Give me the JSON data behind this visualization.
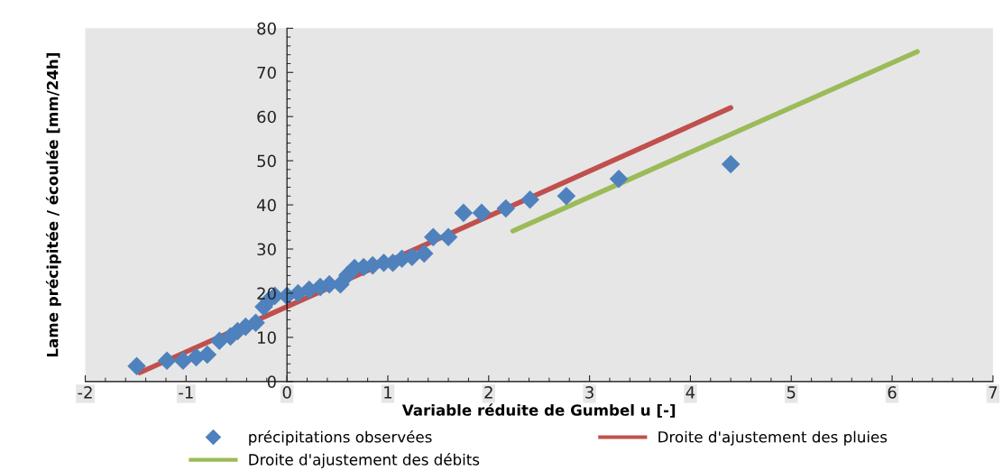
{
  "chart_data": {
    "type": "scatter",
    "xlabel": "Variable réduite de Gumbel u [-]",
    "ylabel": "Lame précipitée / écoulée [mm/24h]",
    "xlim": [
      -2,
      7
    ],
    "xticks": [
      -2,
      -1,
      0,
      1,
      2,
      3,
      4,
      5,
      6,
      7
    ],
    "ylim": [
      0,
      80
    ],
    "yticks": [
      0,
      10,
      20,
      30,
      40,
      50,
      60,
      70,
      80
    ],
    "grid": false,
    "legend": "bottom",
    "series": [
      {
        "name": "précipitations observées",
        "marker": "diamond",
        "color": "#4f81bd",
        "x": [
          -1.49,
          -1.19,
          -1.03,
          -0.9,
          -0.79,
          -0.67,
          -0.56,
          -0.49,
          -0.41,
          -0.31,
          -0.23,
          -0.18,
          -0.12,
          0,
          0.11,
          0.22,
          0.33,
          0.42,
          0.53,
          0.6,
          0.67,
          0.76,
          0.85,
          0.96,
          1.05,
          1.14,
          1.24,
          1.36,
          1.45,
          1.6,
          1.75,
          1.93,
          2.17,
          2.41,
          2.77,
          3.29,
          4.4
        ],
        "values": [
          3.5,
          4.7,
          4.7,
          5.5,
          6.1,
          9.2,
          10.2,
          11.4,
          12.4,
          13.3,
          16.9,
          18.4,
          19.4,
          19.4,
          20,
          20.8,
          21.4,
          22,
          22,
          24.1,
          25.7,
          25.9,
          26.3,
          26.9,
          26.9,
          27.8,
          28.2,
          29,
          32.7,
          32.7,
          38.2,
          38.2,
          39.2,
          41.2,
          42,
          45.9,
          49.2
        ]
      },
      {
        "name": "Droite d'ajustement des pluies",
        "type": "line",
        "marker": "none",
        "color": "#c0504d",
        "x": [
          -1.46,
          4.4
        ],
        "values": [
          2,
          62
        ]
      },
      {
        "name": "Droite d'ajustement des débits",
        "type": "line",
        "marker": "none",
        "color": "#9bbb59",
        "x": [
          2.24,
          6.25
        ],
        "values": [
          34.1,
          74.7
        ]
      }
    ]
  }
}
